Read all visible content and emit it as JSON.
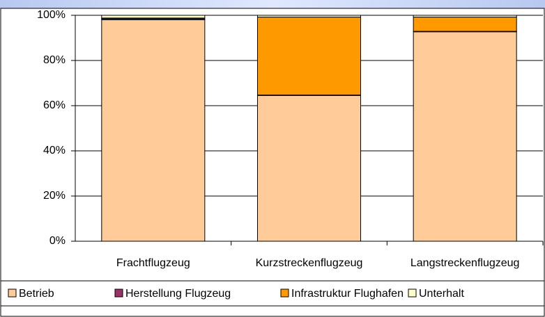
{
  "chart_data": {
    "type": "bar",
    "stacked": true,
    "categories": [
      "Frachtflugzeug",
      "Kurzstreckenflugzeug",
      "Langstreckenflugzeug"
    ],
    "series": [
      {
        "name": "Betrieb",
        "color": "#ffcc99",
        "values": [
          98,
          64.5,
          92.7
        ]
      },
      {
        "name": "Herstellung Flugzeug",
        "color": "#993366",
        "values": [
          0.5,
          0.2,
          0.2
        ]
      },
      {
        "name": "Infrastruktur Flughafen",
        "color": "#ff9900",
        "values": [
          0.3,
          34.5,
          6.3
        ]
      },
      {
        "name": "Unterhalt",
        "color": "#ffffcc",
        "values": [
          1.2,
          0.8,
          0.8
        ]
      }
    ],
    "ylim": [
      0,
      100
    ],
    "yticks": [
      {
        "value": 0,
        "label": "0%"
      },
      {
        "value": 20,
        "label": "20%"
      },
      {
        "value": 40,
        "label": "40%"
      },
      {
        "value": 60,
        "label": "60%"
      },
      {
        "value": 80,
        "label": "80%"
      },
      {
        "value": 100,
        "label": "100%"
      }
    ],
    "grid": true,
    "legend": "bottom"
  }
}
